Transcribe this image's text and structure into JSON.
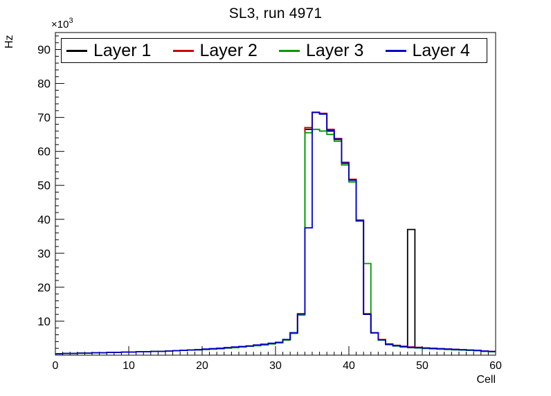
{
  "title": "SL3, run 4971",
  "chart_data": {
    "type": "step-histogram",
    "title": "SL3, run 4971",
    "xlabel": "Cell",
    "ylabel": "Hz",
    "y_power_label": {
      "base": "×10",
      "exp": "3"
    },
    "y_units": "values are in units of 10^3 Hz",
    "xlim": [
      0,
      60
    ],
    "ylim": [
      0,
      95
    ],
    "bin_width": 1,
    "x_major_ticks": [
      0,
      10,
      20,
      30,
      40,
      50,
      60
    ],
    "x_minor_step": 1,
    "y_major_ticks": [
      0,
      10,
      20,
      30,
      40,
      50,
      60,
      70,
      80,
      90
    ],
    "y_major_tick_labels": [
      "10",
      "20",
      "30",
      "40",
      "50",
      "60",
      "70",
      "80",
      "90"
    ],
    "y_minor_step": 2,
    "grid": false,
    "legend_position": "top-inside-horizontal",
    "series": [
      {
        "name": "Layer 1",
        "color": "#000000",
        "values": [
          0.4,
          0.5,
          0.5,
          0.6,
          0.6,
          0.7,
          0.7,
          0.8,
          0.8,
          0.9,
          0.9,
          1.0,
          1.0,
          1.1,
          1.1,
          1.2,
          1.3,
          1.4,
          1.5,
          1.6,
          1.7,
          1.8,
          2.0,
          2.1,
          2.3,
          2.5,
          2.7,
          2.9,
          3.1,
          3.4,
          3.7,
          4.5,
          6.5,
          12.0,
          66.5,
          71.5,
          71.0,
          66.0,
          63.5,
          56.5,
          51.5,
          39.5,
          12.0,
          6.5,
          4.5,
          3.2,
          2.8,
          2.5,
          37.0,
          2.2,
          2.0,
          1.9,
          1.8,
          1.7,
          1.6,
          1.5,
          1.4,
          1.3,
          1.2,
          1.0
        ]
      },
      {
        "name": "Layer 2",
        "color": "#cc0000",
        "values": [
          0.4,
          0.5,
          0.5,
          0.6,
          0.6,
          0.7,
          0.7,
          0.8,
          0.8,
          0.9,
          0.9,
          1.0,
          1.0,
          1.1,
          1.1,
          1.2,
          1.3,
          1.4,
          1.5,
          1.6,
          1.7,
          1.9,
          2.0,
          2.2,
          2.3,
          2.5,
          2.7,
          2.9,
          3.2,
          3.4,
          3.8,
          4.6,
          6.6,
          12.2,
          67.0,
          71.5,
          71.2,
          66.5,
          63.8,
          56.8,
          51.8,
          39.8,
          12.2,
          6.6,
          4.6,
          3.3,
          2.9,
          2.6,
          2.4,
          2.3,
          2.1,
          2.0,
          1.9,
          1.8,
          1.7,
          1.6,
          1.5,
          1.4,
          1.2,
          1.1
        ]
      },
      {
        "name": "Layer 3",
        "color": "#009900",
        "values": [
          0.4,
          0.5,
          0.5,
          0.6,
          0.6,
          0.7,
          0.7,
          0.8,
          0.8,
          0.9,
          0.9,
          1.0,
          1.0,
          1.1,
          1.1,
          1.2,
          1.3,
          1.4,
          1.5,
          1.6,
          1.7,
          1.8,
          1.9,
          2.1,
          2.2,
          2.4,
          2.6,
          2.8,
          3.0,
          3.3,
          3.6,
          4.4,
          6.4,
          11.8,
          65.5,
          66.5,
          66.0,
          65.0,
          63.0,
          56.0,
          51.0,
          39.5,
          27.0,
          6.5,
          4.4,
          3.1,
          2.7,
          2.4,
          2.2,
          2.1,
          2.0,
          1.9,
          1.8,
          1.7,
          1.6,
          1.5,
          1.4,
          1.3,
          1.1,
          1.0
        ]
      },
      {
        "name": "Layer 4",
        "color": "#0000cc",
        "values": [
          0.4,
          0.5,
          0.5,
          0.6,
          0.6,
          0.7,
          0.7,
          0.8,
          0.8,
          0.9,
          0.9,
          1.0,
          1.0,
          1.1,
          1.1,
          1.2,
          1.3,
          1.4,
          1.5,
          1.6,
          1.8,
          1.9,
          2.0,
          2.2,
          2.4,
          2.5,
          2.7,
          3.0,
          3.2,
          3.5,
          3.8,
          4.6,
          6.6,
          12.1,
          37.5,
          71.5,
          71.0,
          66.2,
          63.6,
          56.6,
          51.6,
          39.6,
          12.1,
          6.6,
          4.5,
          3.2,
          2.8,
          2.5,
          2.3,
          2.2,
          2.1,
          2.0,
          1.9,
          1.8,
          1.7,
          1.6,
          1.5,
          1.4,
          1.2,
          1.1
        ]
      }
    ],
    "annotations": [
      "Layer 1 (black) has an isolated spike of ~37x10^3 Hz at cell 48",
      "Layer 3 (green) plateau top is lower (~66x10^3) than layers 1/2/4 (~71.5x10^3)"
    ]
  }
}
